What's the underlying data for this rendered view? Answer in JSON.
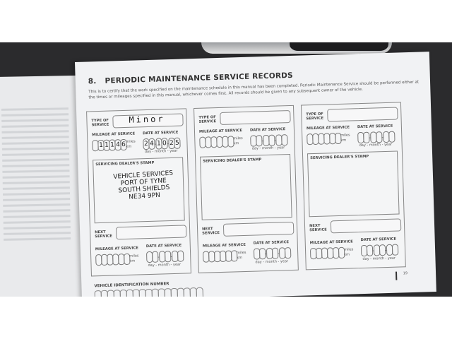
{
  "page": {
    "section_number": "8.",
    "title": "PERIODIC MAINTENANCE SERVICE RECORDS",
    "intro": "This is to certify that the work specified on the maintenance schedule in this manual has been completed. Periodic Maintenance Service should be performed either at the times or mileages specified in this manual, whichever comes first. All records should be given to any subsequent owner of the vehicle.",
    "page_number": "19"
  },
  "labels": {
    "type_of_service": "TYPE OF SERVICE",
    "mileage_at_service": "MILEAGE AT SERVICE",
    "date_at_service": "DATE AT SERVICE",
    "miles": "miles",
    "km": "km",
    "date_format": "day - month - year",
    "dealer_stamp": "SERVICING DEALER'S STAMP",
    "next_service": "NEXT SERVICE",
    "vin": "VEHICLE IDENTIFICATION NUMBER"
  },
  "records": [
    {
      "type_of_service": "Minor",
      "mileage": [
        "",
        "1",
        "1",
        "1",
        "4",
        "6"
      ],
      "date": [
        "2",
        "4",
        "1",
        "0",
        "2",
        "5"
      ],
      "stamp": [
        "VEHICLE SERVICES",
        "PORT OF TYNE",
        "SOUTH SHIELDS",
        "NE34 9PN"
      ]
    },
    {
      "type_of_service": "",
      "mileage": [
        "",
        "",
        "",
        "",
        "",
        ""
      ],
      "date": [
        "",
        "",
        "",
        "",
        "",
        ""
      ],
      "stamp": []
    },
    {
      "type_of_service": "",
      "mileage": [
        "",
        "",
        "",
        "",
        "",
        ""
      ],
      "date": [
        "",
        "",
        "",
        "",
        "",
        ""
      ],
      "stamp": []
    }
  ],
  "colors": {
    "paper": "#f1f2f4",
    "background": "#2b2b2d",
    "ink": "#333333"
  }
}
